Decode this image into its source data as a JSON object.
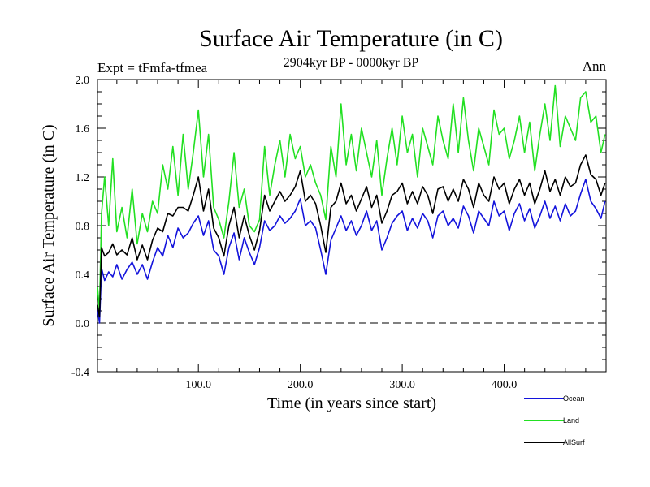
{
  "chart_data": {
    "type": "line",
    "title": "Surface Air Temperature (in C)",
    "subtitle": "2904kyr BP - 0000kyr BP",
    "experiment_label": "Expt = tFmfa-tfmea",
    "season_label": "Ann",
    "xlabel": "Time (in years since start)",
    "ylabel": "Surface Air Temperature (in C)",
    "xlim": [
      1,
      500
    ],
    "ylim": [
      -0.4,
      2.0
    ],
    "x_ticks": [
      100,
      200,
      300,
      400
    ],
    "x_tick_labels": [
      "100.0",
      "200.0",
      "300.0",
      "400.0"
    ],
    "y_ticks": [
      -0.4,
      0.0,
      0.4,
      0.8,
      1.2,
      1.6,
      2.0
    ],
    "y_tick_labels": [
      "-0.4",
      "0.0",
      "0.4",
      "0.8",
      "1.2",
      "1.6",
      "2.0"
    ],
    "reference_line": {
      "y": 0.0,
      "style": "dashed"
    },
    "legend_placement": "below-right",
    "series_x": [
      1,
      3,
      5,
      8,
      12,
      16,
      20,
      25,
      30,
      35,
      40,
      45,
      50,
      55,
      60,
      65,
      70,
      75,
      80,
      85,
      90,
      95,
      100,
      105,
      110,
      115,
      120,
      125,
      130,
      135,
      140,
      145,
      150,
      155,
      160,
      165,
      170,
      175,
      180,
      185,
      190,
      195,
      200,
      205,
      210,
      215,
      220,
      225,
      230,
      235,
      240,
      245,
      250,
      255,
      260,
      265,
      270,
      275,
      280,
      285,
      290,
      295,
      300,
      305,
      310,
      315,
      320,
      325,
      330,
      335,
      340,
      345,
      350,
      355,
      360,
      365,
      370,
      375,
      380,
      385,
      390,
      395,
      400,
      405,
      410,
      415,
      420,
      425,
      430,
      435,
      440,
      445,
      450,
      455,
      460,
      465,
      470,
      475,
      480,
      485,
      490,
      495,
      499
    ],
    "series": [
      {
        "name": "Ocean",
        "color": "#1414dc",
        "values": [
          0.12,
          0.0,
          0.45,
          0.35,
          0.42,
          0.38,
          0.48,
          0.36,
          0.44,
          0.5,
          0.4,
          0.48,
          0.36,
          0.5,
          0.62,
          0.55,
          0.72,
          0.62,
          0.78,
          0.7,
          0.74,
          0.82,
          0.88,
          0.72,
          0.84,
          0.6,
          0.55,
          0.4,
          0.62,
          0.74,
          0.52,
          0.7,
          0.58,
          0.48,
          0.62,
          0.84,
          0.76,
          0.8,
          0.88,
          0.82,
          0.86,
          0.92,
          1.02,
          0.8,
          0.84,
          0.78,
          0.6,
          0.4,
          0.68,
          0.78,
          0.88,
          0.76,
          0.84,
          0.72,
          0.8,
          0.92,
          0.76,
          0.84,
          0.6,
          0.7,
          0.82,
          0.88,
          0.92,
          0.76,
          0.86,
          0.78,
          0.9,
          0.84,
          0.7,
          0.88,
          0.92,
          0.8,
          0.86,
          0.78,
          0.96,
          0.88,
          0.74,
          0.92,
          0.86,
          0.8,
          1.0,
          0.88,
          0.92,
          0.76,
          0.9,
          0.98,
          0.84,
          0.94,
          0.78,
          0.88,
          1.0,
          0.86,
          0.96,
          0.84,
          0.98,
          0.88,
          0.92,
          1.06,
          1.18,
          1.0,
          0.94,
          0.86,
          1.0
        ]
      },
      {
        "name": "Land",
        "color": "#22e022",
        "values": [
          0.3,
          0.1,
          0.9,
          1.2,
          0.8,
          1.35,
          0.75,
          0.95,
          0.7,
          1.1,
          0.65,
          0.9,
          0.75,
          1.0,
          0.9,
          1.3,
          1.1,
          1.45,
          1.05,
          1.55,
          1.1,
          1.4,
          1.75,
          1.2,
          1.55,
          0.95,
          0.85,
          0.7,
          1.0,
          1.4,
          0.95,
          1.1,
          0.8,
          0.75,
          0.85,
          1.45,
          1.05,
          1.3,
          1.5,
          1.2,
          1.55,
          1.35,
          1.45,
          1.2,
          1.3,
          1.15,
          1.05,
          0.85,
          1.45,
          1.2,
          1.8,
          1.3,
          1.55,
          1.25,
          1.6,
          1.4,
          1.2,
          1.5,
          1.05,
          1.35,
          1.6,
          1.3,
          1.7,
          1.4,
          1.55,
          1.2,
          1.6,
          1.45,
          1.3,
          1.7,
          1.5,
          1.35,
          1.8,
          1.4,
          1.85,
          1.5,
          1.25,
          1.6,
          1.45,
          1.3,
          1.75,
          1.55,
          1.6,
          1.35,
          1.5,
          1.7,
          1.4,
          1.65,
          1.25,
          1.55,
          1.8,
          1.5,
          1.95,
          1.45,
          1.7,
          1.6,
          1.5,
          1.85,
          1.9,
          1.65,
          1.7,
          1.4,
          1.55
        ]
      },
      {
        "name": "AllSurf",
        "color": "#000000",
        "values": [
          0.15,
          0.05,
          0.62,
          0.55,
          0.58,
          0.65,
          0.56,
          0.6,
          0.56,
          0.7,
          0.52,
          0.64,
          0.52,
          0.68,
          0.78,
          0.75,
          0.9,
          0.88,
          0.95,
          0.95,
          0.92,
          1.05,
          1.2,
          0.92,
          1.1,
          0.78,
          0.7,
          0.55,
          0.8,
          0.95,
          0.7,
          0.88,
          0.72,
          0.6,
          0.76,
          1.05,
          0.92,
          1.0,
          1.08,
          1.0,
          1.05,
          1.12,
          1.25,
          1.0,
          1.05,
          0.98,
          0.8,
          0.58,
          0.95,
          1.0,
          1.15,
          0.98,
          1.05,
          0.92,
          1.02,
          1.12,
          0.95,
          1.05,
          0.82,
          0.92,
          1.05,
          1.08,
          1.15,
          0.98,
          1.08,
          0.98,
          1.12,
          1.05,
          0.9,
          1.1,
          1.12,
          1.0,
          1.1,
          1.0,
          1.18,
          1.1,
          0.95,
          1.15,
          1.05,
          1.0,
          1.2,
          1.1,
          1.15,
          0.98,
          1.1,
          1.18,
          1.05,
          1.15,
          0.98,
          1.1,
          1.25,
          1.08,
          1.18,
          1.05,
          1.2,
          1.12,
          1.15,
          1.3,
          1.38,
          1.22,
          1.18,
          1.05,
          1.15
        ]
      }
    ]
  }
}
